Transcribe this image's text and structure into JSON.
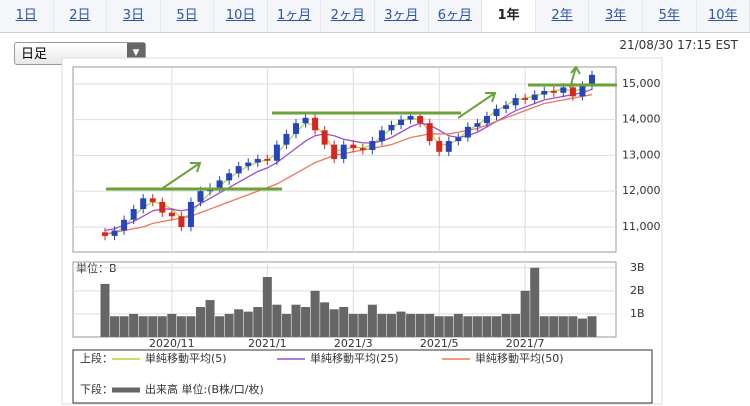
{
  "tabs": [
    "1日",
    "2日",
    "3日",
    "5日",
    "10日",
    "1ヶ月",
    "2ヶ月",
    "3ヶ月",
    "6ヶ月",
    "1年",
    "2年",
    "3年",
    "5年",
    "10年"
  ],
  "active_tab": 9,
  "dropdown": "日足",
  "timestamp": "21/08/30 17:15 EST",
  "chart_data": {
    "type": "candlestick",
    "categories": [
      null,
      null,
      null,
      null,
      null,
      null,
      null,
      "2020/11",
      null,
      null,
      null,
      null,
      null,
      null,
      null,
      null,
      null,
      "2021/1",
      null,
      null,
      null,
      null,
      null,
      null,
      null,
      null,
      "2021/3",
      null,
      null,
      null,
      null,
      null,
      null,
      null,
      null,
      "2021/5",
      null,
      null,
      null,
      null,
      null,
      null,
      null,
      null,
      "2021/7",
      null,
      null,
      null,
      null,
      null,
      null,
      null
    ],
    "up_color": "#2545b8",
    "down_color": "#d8261f",
    "open": [
      10850,
      10750,
      10900,
      11200,
      11500,
      11800,
      11700,
      11400,
      11300,
      11000,
      11700,
      12000,
      12100,
      12300,
      12500,
      12700,
      12800,
      12900,
      12850,
      13300,
      13600,
      13900,
      14050,
      13700,
      13300,
      12900,
      13300,
      13200,
      13150,
      13400,
      13700,
      13850,
      14000,
      14100,
      13900,
      13400,
      13100,
      13400,
      13500,
      13800,
      13900,
      14100,
      14300,
      14400,
      14600,
      14550,
      14700,
      14800,
      14750,
      14900,
      14650,
      14950
    ],
    "high": [
      10970,
      11020,
      11320,
      11620,
      11920,
      11920,
      11820,
      11520,
      11420,
      11820,
      12120,
      12220,
      12420,
      12620,
      12820,
      12920,
      13020,
      13020,
      13420,
      13720,
      14020,
      14170,
      14170,
      13820,
      13420,
      13420,
      13420,
      13320,
      13520,
      13820,
      13970,
      14120,
      14220,
      14220,
      14020,
      13520,
      13520,
      13620,
      13920,
      14020,
      14220,
      14420,
      14520,
      14720,
      14720,
      14820,
      14920,
      14920,
      15020,
      15020,
      15070,
      15370
    ],
    "low": [
      10630,
      10630,
      10780,
      11080,
      11380,
      11580,
      11280,
      11180,
      10880,
      10880,
      11580,
      11880,
      11980,
      12180,
      12380,
      12580,
      12680,
      12730,
      12730,
      13180,
      13480,
      13780,
      13580,
      13180,
      12780,
      12780,
      13080,
      13030,
      13030,
      13280,
      13580,
      13730,
      13880,
      13780,
      13280,
      12980,
      12980,
      13280,
      13380,
      13680,
      13780,
      13980,
      14180,
      14280,
      14430,
      14430,
      14580,
      14630,
      14630,
      14530,
      14530,
      14830
    ],
    "close": [
      10750,
      10900,
      11200,
      11500,
      11800,
      11700,
      11400,
      11300,
      11000,
      11700,
      12000,
      12100,
      12300,
      12500,
      12700,
      12800,
      12900,
      12850,
      13300,
      13600,
      13900,
      14050,
      13700,
      13300,
      12900,
      13300,
      13200,
      13150,
      13400,
      13700,
      13850,
      14000,
      14100,
      13900,
      13400,
      13100,
      13400,
      13500,
      13800,
      13900,
      14100,
      14300,
      14400,
      14600,
      14550,
      14700,
      14800,
      14750,
      14900,
      14650,
      14950,
      15250
    ],
    "series": [
      {
        "name": "単純移動平均(5)",
        "color": "#b5d43c",
        "values": [
          10800,
          10830,
          11000,
          11300,
          11550,
          11700,
          11650,
          11500,
          11250,
          11350,
          11700,
          11950,
          12150,
          12350,
          12550,
          12700,
          12820,
          12870,
          13050,
          13350,
          13650,
          13900,
          13850,
          13550,
          13150,
          13150,
          13250,
          13200,
          13300,
          13550,
          13750,
          13950,
          14050,
          14000,
          13650,
          13300,
          13300,
          13450,
          13700,
          13850,
          14050,
          14250,
          14400,
          14550,
          14600,
          14650,
          14750,
          14800,
          14850,
          14800,
          14850,
          15050
        ]
      },
      {
        "name": "単純移動平均(25)",
        "color": "#9a4fd0",
        "values": [
          10900,
          10950,
          11050,
          11150,
          11300,
          11450,
          11500,
          11500,
          11450,
          11500,
          11650,
          11800,
          11950,
          12100,
          12250,
          12400,
          12550,
          12650,
          12800,
          13000,
          13200,
          13400,
          13550,
          13600,
          13550,
          13450,
          13400,
          13350,
          13350,
          13400,
          13500,
          13650,
          13800,
          13900,
          13850,
          13700,
          13550,
          13500,
          13550,
          13650,
          13800,
          13950,
          14100,
          14250,
          14350,
          14450,
          14550,
          14600,
          14650,
          14700,
          14750,
          14850
        ]
      },
      {
        "name": "単純移動平均(50)",
        "color": "#e8785a",
        "values": [
          10800,
          10850,
          10900,
          10950,
          11000,
          11100,
          11150,
          11200,
          11250,
          11300,
          11400,
          11500,
          11600,
          11700,
          11800,
          11900,
          12000,
          12100,
          12200,
          12350,
          12500,
          12650,
          12800,
          12900,
          13000,
          13050,
          13100,
          13150,
          13200,
          13250,
          13300,
          13400,
          13500,
          13550,
          13600,
          13600,
          13600,
          13650,
          13700,
          13750,
          13850,
          13950,
          14050,
          14150,
          14250,
          14350,
          14450,
          14500,
          14550,
          14600,
          14650,
          14700
        ]
      }
    ],
    "ylim": [
      10300,
      15470
    ],
    "yticks": [
      {
        "value": 11000,
        "label": "11,000"
      },
      {
        "value": 12000,
        "label": "12,000"
      },
      {
        "value": 13000,
        "label": "13,000"
      },
      {
        "value": 14000,
        "label": "14,000"
      },
      {
        "value": 15000,
        "label": "15,000"
      }
    ],
    "grid": true,
    "volume": {
      "name": "出来高 単位:(B株/口/枚)",
      "color": "#666666",
      "unit_label": "単位：B",
      "values": [
        2.3,
        0.9,
        0.9,
        1.0,
        0.9,
        0.9,
        0.9,
        1.0,
        0.9,
        0.9,
        1.3,
        1.6,
        0.9,
        1.0,
        1.2,
        1.1,
        1.3,
        2.6,
        1.4,
        1.0,
        1.4,
        1.3,
        2.0,
        1.5,
        1.2,
        1.3,
        1.0,
        1.0,
        1.4,
        1.0,
        1.0,
        1.1,
        1.0,
        1.0,
        1.0,
        0.9,
        0.9,
        1.0,
        0.9,
        0.9,
        0.9,
        0.9,
        1.0,
        1.0,
        2.0,
        3.0,
        0.9,
        0.9,
        0.9,
        0.9,
        0.8,
        0.9
      ],
      "ylim": [
        0,
        3.25
      ],
      "yticks": [
        {
          "value": 1,
          "label": "1B"
        },
        {
          "value": 2,
          "label": "2B"
        },
        {
          "value": 3,
          "label": "3B"
        }
      ]
    },
    "legend": {
      "upper_label": "上段：",
      "lower_label": "下段："
    }
  }
}
